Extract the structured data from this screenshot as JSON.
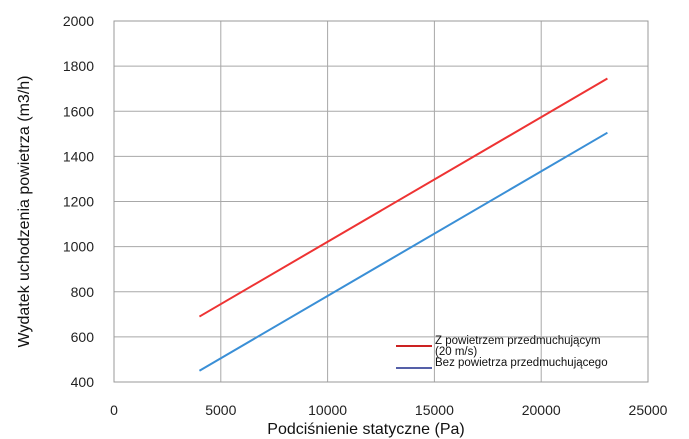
{
  "chart_data": {
    "type": "line",
    "xlabel": "Podciśnienie statyczne (Pa)",
    "ylabel": "Wydatek uchodzenia powietrza (m3/h)",
    "xlim": [
      0,
      25000
    ],
    "ylim": [
      400,
      2000
    ],
    "xticks": [
      0,
      5000,
      10000,
      15000,
      20000,
      25000
    ],
    "yticks": [
      400,
      600,
      800,
      1000,
      1200,
      1400,
      1600,
      1800,
      2000
    ],
    "xtick_labels": [
      "0",
      "5000",
      "10000",
      "15000",
      "20000",
      "25000"
    ],
    "ytick_labels": [
      "400",
      "600",
      "800",
      "1000",
      "1200",
      "1400",
      "1600",
      "1800",
      "2000"
    ],
    "grid": true,
    "legend_position": "bottom-right",
    "series": [
      {
        "name": "Z powietrzem przedmuchującym (20 m/s)",
        "legend_lines": [
          "Z powietrzem przedmuchującym",
          "(20 m/s)"
        ],
        "color": "#ee3333",
        "x": [
          4000,
          23100
        ],
        "y": [
          690,
          1745
        ]
      },
      {
        "name": "Bez powietrza przedmuchującego",
        "legend_lines": [
          "Bez powietrza przedmuchującego"
        ],
        "color": "#3a8fd6",
        "x": [
          4000,
          23100
        ],
        "y": [
          450,
          1505
        ]
      }
    ]
  }
}
